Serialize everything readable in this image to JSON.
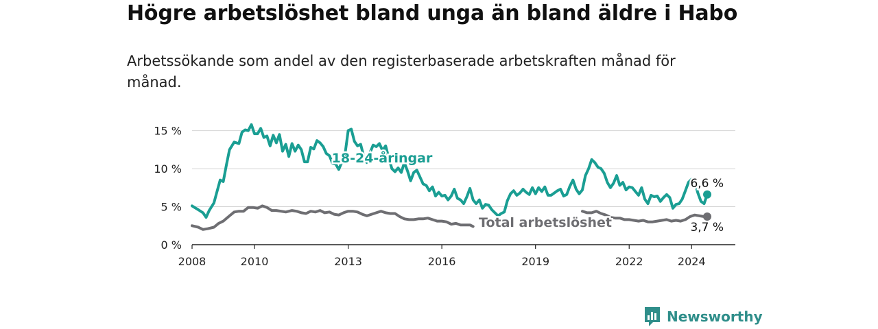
{
  "title": "Högre arbetslöshet bland unga än bland äldre i Habo",
  "subtitle": "Arbetssökande som andel av den registerbaserade arbetskraften månad för månad.",
  "brand": "Newsworthy",
  "colors": {
    "youth": "#1a9e93",
    "total": "#6e6e72",
    "brand": "#2f8e8a"
  },
  "chart_data": {
    "type": "line",
    "title": "Högre arbetslöshet bland unga än bland äldre i Habo",
    "xlabel": "",
    "ylabel": "",
    "xlim": [
      2008,
      2025.4
    ],
    "ylim": [
      0,
      16.5
    ],
    "y_ticks": [
      0,
      5,
      10,
      15
    ],
    "y_tick_labels": [
      "0 %",
      "5 %",
      "10 %",
      "15 %"
    ],
    "x_ticks": [
      2008,
      2010,
      2013,
      2016,
      2019,
      2022,
      2024
    ],
    "x_tick_labels": [
      "2008",
      "2010",
      "2013",
      "2016",
      "2019",
      "2022",
      "2024"
    ],
    "grid": true,
    "series": [
      {
        "name": "18-24-åringar",
        "label": "18-24-åringar",
        "end_label": "6,6 %",
        "points": [
          [
            2008.0,
            5.1
          ],
          [
            2008.2,
            4.6
          ],
          [
            2008.35,
            4.2
          ],
          [
            2008.45,
            3.6
          ],
          [
            2008.55,
            4.5
          ],
          [
            2008.7,
            5.5
          ],
          [
            2008.8,
            7.0
          ],
          [
            2008.9,
            8.5
          ],
          [
            2009.0,
            8.3
          ],
          [
            2009.1,
            10.5
          ],
          [
            2009.2,
            12.5
          ],
          [
            2009.35,
            13.5
          ],
          [
            2009.5,
            13.3
          ],
          [
            2009.6,
            14.8
          ],
          [
            2009.7,
            15.1
          ],
          [
            2009.8,
            15.0
          ],
          [
            2009.9,
            15.8
          ],
          [
            2010.0,
            14.6
          ],
          [
            2010.1,
            14.6
          ],
          [
            2010.2,
            15.3
          ],
          [
            2010.3,
            14.1
          ],
          [
            2010.4,
            14.3
          ],
          [
            2010.5,
            13.0
          ],
          [
            2010.6,
            14.4
          ],
          [
            2010.7,
            13.4
          ],
          [
            2010.8,
            14.5
          ],
          [
            2010.9,
            12.3
          ],
          [
            2011.0,
            13.2
          ],
          [
            2011.1,
            11.6
          ],
          [
            2011.2,
            13.3
          ],
          [
            2011.3,
            12.3
          ],
          [
            2011.4,
            13.1
          ],
          [
            2011.5,
            12.5
          ],
          [
            2011.6,
            10.9
          ],
          [
            2011.7,
            10.9
          ],
          [
            2011.8,
            12.8
          ],
          [
            2011.9,
            12.6
          ],
          [
            2012.0,
            13.7
          ],
          [
            2012.1,
            13.4
          ],
          [
            2012.2,
            12.9
          ],
          [
            2012.3,
            12.0
          ],
          [
            2012.4,
            11.7
          ],
          [
            2012.5,
            10.7
          ],
          [
            2012.6,
            10.6
          ],
          [
            2012.7,
            9.9
          ],
          [
            2012.8,
            10.9
          ],
          [
            2012.9,
            11.9
          ],
          [
            2013.0,
            15.0
          ],
          [
            2013.1,
            15.2
          ],
          [
            2013.2,
            13.6
          ],
          [
            2013.3,
            13.0
          ],
          [
            2013.4,
            13.2
          ],
          [
            2013.5,
            11.6
          ],
          [
            2013.6,
            10.8
          ],
          [
            2013.7,
            12.1
          ],
          [
            2013.8,
            13.1
          ],
          [
            2013.9,
            12.9
          ],
          [
            2014.0,
            13.3
          ],
          [
            2014.1,
            12.4
          ],
          [
            2014.2,
            13.0
          ],
          [
            2014.3,
            11.4
          ],
          [
            2014.4,
            10.0
          ],
          [
            2014.5,
            9.6
          ],
          [
            2014.6,
            10.1
          ],
          [
            2014.7,
            9.5
          ],
          [
            2014.8,
            10.8
          ],
          [
            2014.9,
            9.7
          ],
          [
            2015.0,
            8.4
          ],
          [
            2015.1,
            9.5
          ],
          [
            2015.2,
            9.8
          ],
          [
            2015.3,
            8.9
          ],
          [
            2015.4,
            8.0
          ],
          [
            2015.5,
            7.8
          ],
          [
            2015.6,
            7.1
          ],
          [
            2015.7,
            7.6
          ],
          [
            2015.8,
            6.4
          ],
          [
            2015.9,
            6.9
          ],
          [
            2016.0,
            6.4
          ],
          [
            2016.1,
            6.5
          ],
          [
            2016.2,
            5.9
          ],
          [
            2016.3,
            6.4
          ],
          [
            2016.4,
            7.3
          ],
          [
            2016.5,
            6.1
          ],
          [
            2016.6,
            5.9
          ],
          [
            2016.7,
            5.4
          ],
          [
            2016.8,
            6.3
          ],
          [
            2016.9,
            7.4
          ],
          [
            2017.0,
            5.9
          ],
          [
            2017.1,
            5.4
          ],
          [
            2017.2,
            5.9
          ],
          [
            2017.3,
            4.8
          ],
          [
            2017.4,
            5.3
          ],
          [
            2017.5,
            5.2
          ],
          [
            2017.6,
            4.6
          ],
          [
            2017.7,
            4.2
          ],
          [
            2017.8,
            3.8
          ],
          [
            2017.9,
            4.1
          ],
          [
            2018.0,
            4.3
          ],
          [
            2018.1,
            5.8
          ],
          [
            2018.2,
            6.7
          ],
          [
            2018.3,
            7.1
          ],
          [
            2018.4,
            6.5
          ],
          [
            2018.5,
            6.8
          ],
          [
            2018.6,
            7.3
          ],
          [
            2018.7,
            6.9
          ],
          [
            2018.8,
            6.6
          ],
          [
            2018.9,
            7.5
          ],
          [
            2019.0,
            6.7
          ],
          [
            2019.1,
            7.5
          ],
          [
            2019.2,
            7.0
          ],
          [
            2019.3,
            7.6
          ],
          [
            2019.4,
            6.5
          ],
          [
            2019.5,
            6.5
          ],
          [
            2019.6,
            6.8
          ],
          [
            2019.7,
            7.1
          ],
          [
            2019.8,
            7.3
          ],
          [
            2019.9,
            6.4
          ],
          [
            2020.0,
            6.6
          ],
          [
            2020.1,
            7.7
          ],
          [
            2020.2,
            8.5
          ],
          [
            2020.3,
            7.3
          ],
          [
            2020.4,
            6.7
          ],
          [
            2020.5,
            7.2
          ],
          [
            2020.6,
            9.1
          ],
          [
            2020.7,
            10.0
          ],
          [
            2020.8,
            11.2
          ],
          [
            2020.9,
            10.8
          ],
          [
            2021.0,
            10.2
          ],
          [
            2021.1,
            10.0
          ],
          [
            2021.2,
            9.4
          ],
          [
            2021.3,
            8.2
          ],
          [
            2021.4,
            7.5
          ],
          [
            2021.5,
            8.1
          ],
          [
            2021.6,
            9.1
          ],
          [
            2021.7,
            7.8
          ],
          [
            2021.8,
            8.2
          ],
          [
            2021.9,
            7.2
          ],
          [
            2022.0,
            7.6
          ],
          [
            2022.1,
            7.5
          ],
          [
            2022.2,
            7.0
          ],
          [
            2022.3,
            6.5
          ],
          [
            2022.4,
            7.5
          ],
          [
            2022.5,
            6.0
          ],
          [
            2022.6,
            5.4
          ],
          [
            2022.7,
            6.5
          ],
          [
            2022.8,
            6.3
          ],
          [
            2022.9,
            6.4
          ],
          [
            2023.0,
            5.7
          ],
          [
            2023.1,
            6.2
          ],
          [
            2023.2,
            6.6
          ],
          [
            2023.3,
            6.2
          ],
          [
            2023.4,
            4.8
          ],
          [
            2023.5,
            5.3
          ],
          [
            2023.6,
            5.4
          ],
          [
            2023.7,
            6.0
          ],
          [
            2023.8,
            7.1
          ],
          [
            2023.9,
            8.2
          ],
          [
            2024.0,
            8.6
          ],
          [
            2024.1,
            8.3
          ],
          [
            2024.2,
            6.8
          ],
          [
            2024.3,
            5.7
          ],
          [
            2024.4,
            5.4
          ],
          [
            2024.5,
            6.6
          ]
        ]
      },
      {
        "name": "Total arbetslöshet",
        "label": "Total arbetslöshet",
        "end_label": "3,7 %",
        "points": [
          [
            2008.0,
            2.5
          ],
          [
            2008.2,
            2.3
          ],
          [
            2008.35,
            2.0
          ],
          [
            2008.5,
            2.1
          ],
          [
            2008.7,
            2.3
          ],
          [
            2008.85,
            2.8
          ],
          [
            2009.0,
            3.1
          ],
          [
            2009.2,
            3.8
          ],
          [
            2009.35,
            4.3
          ],
          [
            2009.5,
            4.4
          ],
          [
            2009.65,
            4.4
          ],
          [
            2009.8,
            4.9
          ],
          [
            2009.95,
            4.9
          ],
          [
            2010.1,
            4.8
          ],
          [
            2010.25,
            5.1
          ],
          [
            2010.4,
            4.9
          ],
          [
            2010.55,
            4.5
          ],
          [
            2010.7,
            4.5
          ],
          [
            2010.85,
            4.4
          ],
          [
            2011.0,
            4.3
          ],
          [
            2011.2,
            4.5
          ],
          [
            2011.35,
            4.4
          ],
          [
            2011.5,
            4.2
          ],
          [
            2011.65,
            4.1
          ],
          [
            2011.8,
            4.4
          ],
          [
            2011.95,
            4.3
          ],
          [
            2012.1,
            4.5
          ],
          [
            2012.25,
            4.2
          ],
          [
            2012.4,
            4.3
          ],
          [
            2012.55,
            4.0
          ],
          [
            2012.7,
            3.9
          ],
          [
            2012.85,
            4.2
          ],
          [
            2013.0,
            4.4
          ],
          [
            2013.15,
            4.4
          ],
          [
            2013.3,
            4.3
          ],
          [
            2013.45,
            4.0
          ],
          [
            2013.6,
            3.8
          ],
          [
            2013.75,
            4.0
          ],
          [
            2013.9,
            4.2
          ],
          [
            2014.05,
            4.4
          ],
          [
            2014.2,
            4.2
          ],
          [
            2014.35,
            4.1
          ],
          [
            2014.5,
            4.1
          ],
          [
            2014.65,
            3.7
          ],
          [
            2014.8,
            3.4
          ],
          [
            2014.95,
            3.3
          ],
          [
            2015.1,
            3.3
          ],
          [
            2015.25,
            3.4
          ],
          [
            2015.4,
            3.4
          ],
          [
            2015.55,
            3.5
          ],
          [
            2015.7,
            3.3
          ],
          [
            2015.85,
            3.1
          ],
          [
            2016.0,
            3.1
          ],
          [
            2016.15,
            3.0
          ],
          [
            2016.3,
            2.7
          ],
          [
            2016.45,
            2.8
          ],
          [
            2016.6,
            2.6
          ],
          [
            2016.75,
            2.6
          ],
          [
            2016.9,
            2.6
          ],
          [
            2017.0,
            2.4
          ],
          [
            2020.5,
            4.4
          ],
          [
            2020.65,
            4.2
          ],
          [
            2020.8,
            4.2
          ],
          [
            2020.95,
            4.4
          ],
          [
            2021.1,
            4.1
          ],
          [
            2021.25,
            3.9
          ],
          [
            2021.4,
            3.6
          ],
          [
            2021.55,
            3.5
          ],
          [
            2021.7,
            3.5
          ],
          [
            2021.85,
            3.3
          ],
          [
            2022.0,
            3.3
          ],
          [
            2022.15,
            3.2
          ],
          [
            2022.3,
            3.1
          ],
          [
            2022.45,
            3.2
          ],
          [
            2022.6,
            3.0
          ],
          [
            2022.75,
            3.0
          ],
          [
            2022.9,
            3.1
          ],
          [
            2023.05,
            3.2
          ],
          [
            2023.2,
            3.3
          ],
          [
            2023.35,
            3.1
          ],
          [
            2023.5,
            3.2
          ],
          [
            2023.65,
            3.1
          ],
          [
            2023.8,
            3.3
          ],
          [
            2023.95,
            3.7
          ],
          [
            2024.1,
            3.9
          ],
          [
            2024.25,
            3.8
          ],
          [
            2024.4,
            3.7
          ],
          [
            2024.5,
            3.7
          ]
        ]
      }
    ]
  }
}
